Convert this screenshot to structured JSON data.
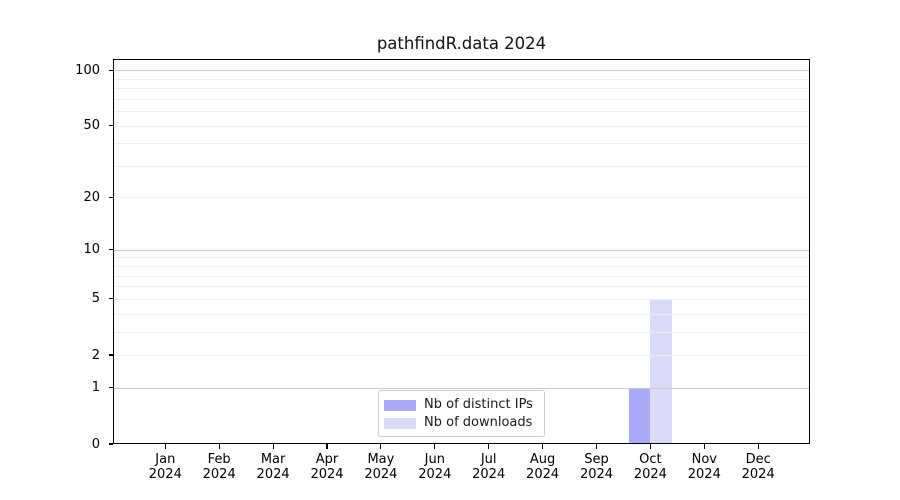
{
  "chart_data": {
    "type": "bar",
    "title": "pathfindR.data 2024",
    "categories": [
      "Jan",
      "Feb",
      "Mar",
      "Apr",
      "May",
      "Jun",
      "Jul",
      "Aug",
      "Sep",
      "Oct",
      "Nov",
      "Dec"
    ],
    "category_year": "2024",
    "series": [
      {
        "name": "Nb of distinct IPs",
        "color": "#a9a9f7",
        "values": [
          0,
          0,
          0,
          0,
          0,
          0,
          0,
          0,
          0,
          1,
          0,
          0
        ]
      },
      {
        "name": "Nb of downloads",
        "color": "#dadaf9",
        "values": [
          0,
          0,
          0,
          0,
          0,
          0,
          0,
          0,
          0,
          5,
          0,
          0
        ]
      }
    ],
    "y_scale": "log1p",
    "y_ticks": [
      0,
      1,
      2,
      5,
      10,
      20,
      50,
      100
    ],
    "y_major_gridlines": [
      1,
      10,
      100
    ],
    "y_minor_gridlines": [
      2,
      3,
      4,
      5,
      6,
      7,
      8,
      9,
      20,
      30,
      40,
      50,
      60,
      70,
      80,
      90
    ],
    "ylim": [
      0,
      115
    ],
    "grid": true,
    "legend_position": "lower center inside",
    "colors": {
      "axis": "#000000",
      "major_grid": "#c9c9c9",
      "minor_grid": "#efefef",
      "legend_border": "#cccccc",
      "background": "#ffffff"
    }
  }
}
